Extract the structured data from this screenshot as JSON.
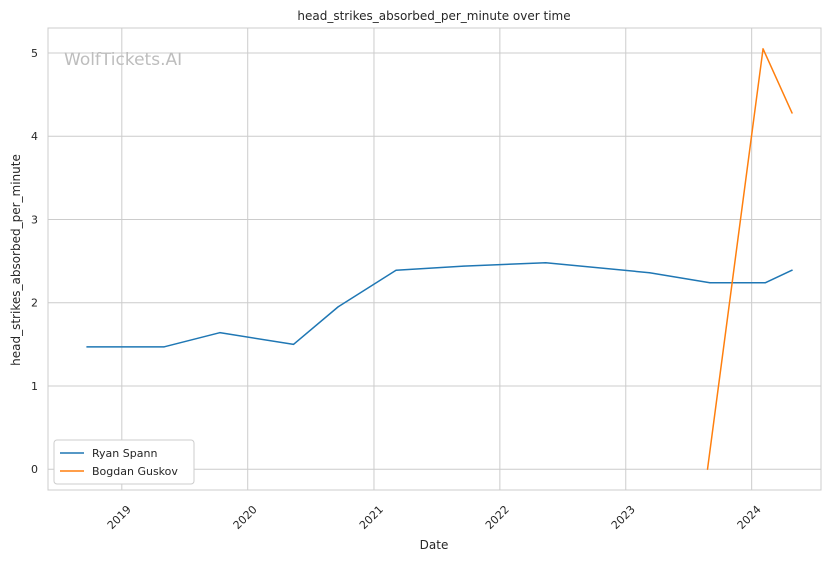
{
  "chart_data": {
    "type": "line",
    "title": "head_strikes_absorbed_per_minute over time",
    "xlabel": "Date",
    "ylabel": "head_strikes_absorbed_per_minute",
    "watermark": "WolfTickets.AI",
    "x_ticks": [
      "2019",
      "2020",
      "2021",
      "2022",
      "2023",
      "2024"
    ],
    "y_ticks": [
      0,
      1,
      2,
      3,
      4,
      5
    ],
    "xlim": [
      "2018-06-01",
      "2024-07-20"
    ],
    "ylim": [
      -0.25,
      5.3
    ],
    "grid": true,
    "legend_position": "lower-left",
    "series": [
      {
        "name": "Ryan Spann",
        "color": "#1f77b4",
        "points": [
          {
            "x": "2018-09-22",
            "y": 1.47
          },
          {
            "x": "2019-05-04",
            "y": 1.47
          },
          {
            "x": "2019-10-12",
            "y": 1.64
          },
          {
            "x": "2020-05-13",
            "y": 1.5
          },
          {
            "x": "2020-09-19",
            "y": 1.95
          },
          {
            "x": "2021-03-06",
            "y": 2.39
          },
          {
            "x": "2021-09-18",
            "y": 2.44
          },
          {
            "x": "2022-05-14",
            "y": 2.48
          },
          {
            "x": "2023-03-11",
            "y": 2.36
          },
          {
            "x": "2023-09-02",
            "y": 2.24
          },
          {
            "x": "2024-02-10",
            "y": 2.24
          },
          {
            "x": "2024-04-27",
            "y": 2.39
          }
        ]
      },
      {
        "name": "Bogdan Guskov",
        "color": "#ff7f0e",
        "points": [
          {
            "x": "2023-08-26",
            "y": 0
          },
          {
            "x": "2024-02-03",
            "y": 5.05
          },
          {
            "x": "2024-04-27",
            "y": 4.28
          }
        ]
      }
    ]
  }
}
